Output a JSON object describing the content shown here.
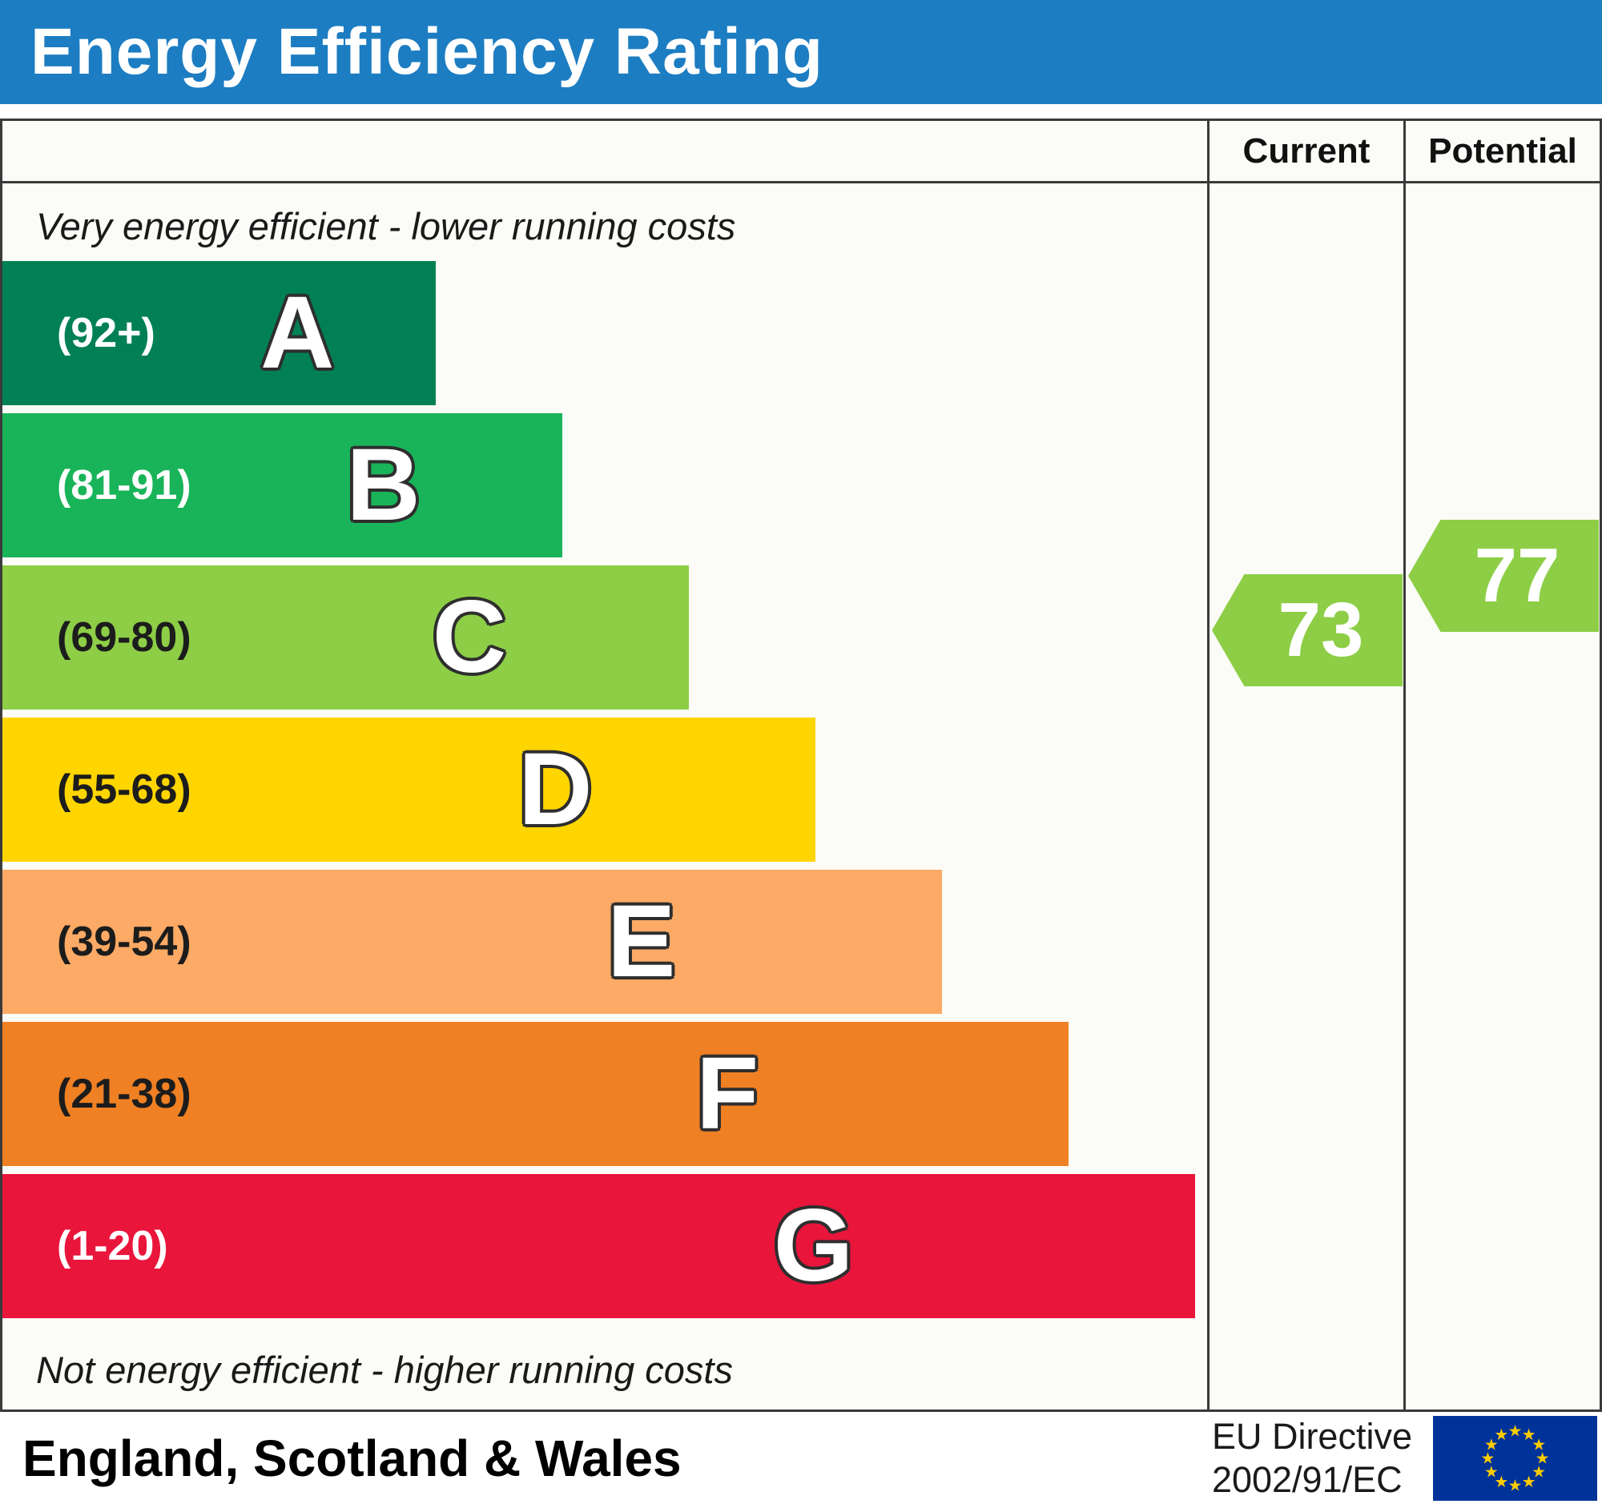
{
  "header": {
    "title": "Energy Efficiency Rating",
    "bg_color": "#1d7dc2"
  },
  "table": {
    "current_label": "Current",
    "potential_label": "Potential",
    "top_note": "Very energy efficient - lower running costs",
    "bottom_note": "Not energy efficient - higher running costs"
  },
  "footer": {
    "region": "England, Scotland & Wales",
    "directive_line1": "EU Directive",
    "directive_line2": "2002/91/EC",
    "flag": {
      "icon": "eu-flag-icon",
      "bg": "#003399",
      "star_color": "#ffcc00",
      "star_glyph": "★"
    }
  },
  "chart_data": {
    "type": "bar",
    "subtype": "epc-energy-efficiency-rating",
    "title": "Energy Efficiency Rating",
    "bands": [
      {
        "letter": "A",
        "range": "(92+)",
        "min": 92,
        "max": 100,
        "color": "#008054",
        "label_color": "#ffffff",
        "width_pct": 36
      },
      {
        "letter": "B",
        "range": "(81-91)",
        "min": 81,
        "max": 91,
        "color": "#19b459",
        "label_color": "#ffffff",
        "width_pct": 46.5
      },
      {
        "letter": "C",
        "range": "(69-80)",
        "min": 69,
        "max": 80,
        "color": "#8dce46",
        "label_color": "#1c1c1c",
        "width_pct": 57
      },
      {
        "letter": "D",
        "range": "(55-68)",
        "min": 55,
        "max": 68,
        "color": "#ffd500",
        "label_color": "#1c1c1c",
        "width_pct": 67.5
      },
      {
        "letter": "E",
        "range": "(39-54)",
        "min": 39,
        "max": 54,
        "color": "#fcaa65",
        "label_color": "#1c1c1c",
        "width_pct": 78
      },
      {
        "letter": "F",
        "range": "(21-38)",
        "min": 21,
        "max": 38,
        "color": "#ef8023",
        "label_color": "#1c1c1c",
        "width_pct": 88.5
      },
      {
        "letter": "G",
        "range": "(1-20)",
        "min": 1,
        "max": 20,
        "color": "#e9153b",
        "label_color": "#ffffff",
        "width_pct": 99
      }
    ],
    "ratings": {
      "current": {
        "value": 73,
        "band": "C",
        "color": "#8dce46"
      },
      "potential": {
        "value": 77,
        "band": "C",
        "color": "#8dce46"
      }
    }
  }
}
